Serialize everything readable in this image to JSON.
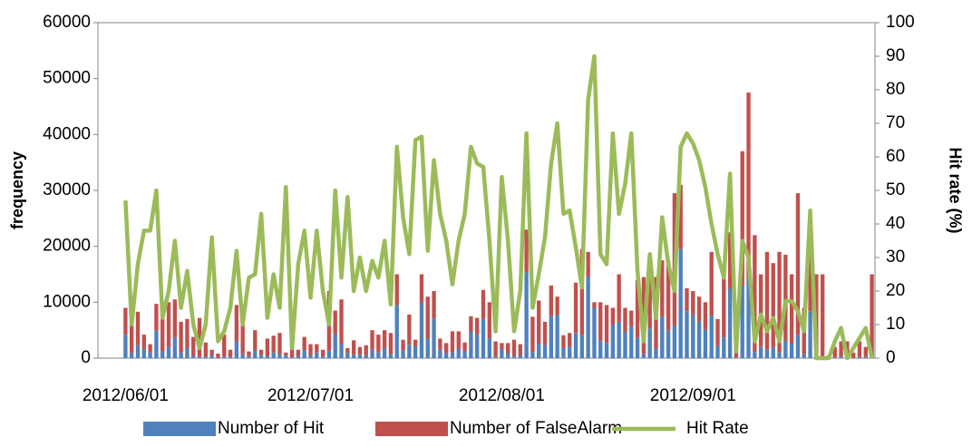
{
  "chart_data": {
    "type": "bar_line",
    "y_label": "frequency",
    "y2_label": "Hit rate (%)",
    "categories": [
      "2012/06/01",
      null,
      null,
      null,
      null,
      null,
      null,
      null,
      null,
      null,
      null,
      null,
      null,
      null,
      null,
      null,
      null,
      null,
      null,
      null,
      null,
      null,
      null,
      null,
      null,
      null,
      null,
      null,
      null,
      null,
      "2012/07/01",
      null,
      null,
      null,
      null,
      null,
      null,
      null,
      null,
      null,
      null,
      null,
      null,
      null,
      null,
      null,
      null,
      null,
      null,
      null,
      null,
      null,
      null,
      null,
      null,
      null,
      null,
      null,
      null,
      null,
      null,
      "2012/08/01",
      null,
      null,
      null,
      null,
      null,
      null,
      null,
      null,
      null,
      null,
      null,
      null,
      null,
      null,
      null,
      null,
      null,
      null,
      null,
      null,
      null,
      null,
      null,
      null,
      null,
      null,
      null,
      null,
      null,
      null,
      "2012/09/01",
      null,
      null,
      null,
      null,
      null,
      null,
      null,
      null,
      null,
      null,
      null,
      null,
      null,
      null,
      null,
      null,
      null,
      null,
      null,
      null,
      null,
      null,
      null,
      null,
      null,
      null,
      null,
      null,
      null
    ],
    "series": [
      {
        "name": "Number of Hit",
        "color": "#4f81bd",
        "kind": "bar",
        "values": [
          4200,
          900,
          2300,
          1600,
          1000,
          4900,
          1200,
          2000,
          3700,
          1000,
          1800,
          400,
          200,
          300,
          500,
          40,
          300,
          200,
          3000,
          700,
          300,
          1300,
          600,
          400,
          1000,
          700,
          500,
          100,
          400,
          1400,
          500,
          1000,
          300,
          1200,
          4300,
          2500,
          900,
          600,
          600,
          500,
          1500,
          1000,
          1800,
          700,
          9500,
          1400,
          2400,
          2100,
          9900,
          3500,
          7100,
          1500,
          900,
          1100,
          1700,
          1200,
          4700,
          4200,
          7000,
          3500,
          200,
          1500,
          900,
          300,
          500,
          15400,
          1100,
          2600,
          2300,
          7500,
          7700,
          1800,
          2000,
          4500,
          4100,
          14600,
          9000,
          3100,
          2700,
          6000,
          6500,
          4700,
          5700,
          3600,
          700,
          5300,
          1700,
          7400,
          4900,
          5900,
          19500,
          8400,
          7700,
          6500,
          5100,
          7600,
          2200,
          3700,
          12400,
          100,
          13000,
          14300,
          1100,
          2000,
          1500,
          2000,
          1000,
          3100,
          2600,
          4100,
          700,
          8400,
          0,
          0,
          0,
          100,
          300,
          0,
          0,
          200,
          200,
          0
        ]
      },
      {
        "name": "Number of FalseAlarm",
        "color": "#c0504d",
        "kind": "bar",
        "values": [
          4800,
          7600,
          6000,
          2600,
          1500,
          4800,
          8800,
          8000,
          6800,
          5500,
          5200,
          3400,
          7000,
          2500,
          1000,
          760,
          3900,
          1300,
          6500,
          5800,
          900,
          3700,
          900,
          3100,
          3000,
          3800,
          500,
          4400,
          1100,
          2400,
          2000,
          1500,
          1200,
          10800,
          4200,
          8000,
          900,
          2600,
          1400,
          1800,
          3500,
          3200,
          3200,
          3800,
          5500,
          1900,
          5400,
          1200,
          5100,
          7500,
          4900,
          2000,
          1800,
          3700,
          3100,
          1600,
          2800,
          3000,
          5200,
          6500,
          2800,
          1200,
          1800,
          3000,
          2000,
          7600,
          6300,
          7700,
          4200,
          5500,
          3300,
          2300,
          2500,
          9000,
          15400,
          4400,
          1000,
          6900,
          6800,
          3000,
          8500,
          4300,
          2800,
          10400,
          13800,
          11700,
          12800,
          10100,
          12600,
          23600,
          11500,
          4100,
          4300,
          4500,
          4900,
          11400,
          4800,
          11800,
          10100,
          2900,
          24000,
          33200,
          20900,
          13000,
          17500,
          15000,
          18000,
          15400,
          12400,
          25400,
          8300,
          10600,
          15000,
          15000,
          500,
          1900,
          2700,
          3000,
          1000,
          2800,
          1800,
          15000
        ]
      },
      {
        "name": "Hit Rate",
        "color": "#9bbb59",
        "kind": "line",
        "axis": "y2",
        "values": [
          47,
          10,
          28,
          38,
          38,
          50,
          12,
          20,
          35,
          15,
          26,
          10,
          3,
          10,
          36,
          5,
          8,
          15,
          32,
          10,
          24,
          25,
          43,
          12,
          25,
          15,
          51,
          3,
          28,
          38,
          18,
          38,
          20,
          10,
          50,
          24,
          48,
          20,
          30,
          20,
          29,
          24,
          35,
          16,
          63,
          42,
          31,
          65,
          66,
          32,
          59,
          43,
          35,
          22,
          35,
          43,
          63,
          58,
          57,
          35,
          8,
          54,
          35,
          8,
          20,
          67,
          15,
          25,
          36,
          58,
          70,
          43,
          44,
          33,
          21,
          77,
          90,
          31,
          28,
          67,
          43,
          52,
          67,
          26,
          5,
          31,
          12,
          42,
          28,
          20,
          63,
          67,
          64,
          59,
          51,
          40,
          31,
          24,
          55,
          2,
          35,
          30,
          5,
          13,
          8,
          12,
          5,
          17,
          17,
          14,
          8,
          44,
          0,
          0,
          0,
          5,
          9,
          0,
          3,
          6,
          9,
          0
        ]
      }
    ],
    "ylim": [
      0,
      60000
    ],
    "yticks": [
      0,
      10000,
      20000,
      30000,
      40000,
      50000,
      60000
    ],
    "y2lim": [
      0,
      100
    ],
    "y2ticks": [
      0,
      10,
      20,
      30,
      40,
      50,
      60,
      70,
      80,
      90,
      100
    ],
    "legend": "bottom"
  }
}
